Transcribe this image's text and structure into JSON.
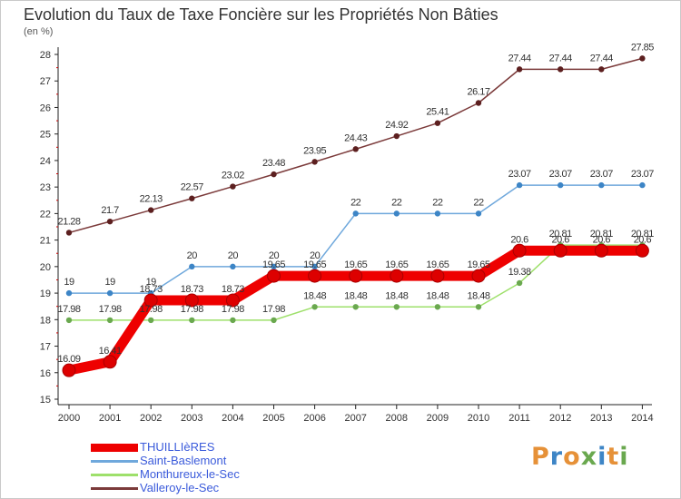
{
  "title": "Evolution du Taux de Taxe Foncière sur les Propriétés Non Bâties",
  "unit": "(en %)",
  "chart_data": {
    "type": "line",
    "title": "Evolution du Taux de Taxe Foncière sur les Propriétés Non Bâties",
    "ylabel": "(en %)",
    "xlabel": "",
    "ylim": [
      15,
      28
    ],
    "yticks": [
      15,
      16,
      17,
      18,
      19,
      20,
      21,
      22,
      23,
      24,
      25,
      26,
      27,
      28
    ],
    "grid": false,
    "categories": [
      "2000",
      "2001",
      "2002",
      "2003",
      "2004",
      "2005",
      "2006",
      "2007",
      "2008",
      "2009",
      "2010",
      "2011",
      "2012",
      "2013",
      "2014"
    ],
    "series": [
      {
        "name": "THUILLIèRES",
        "color": "#ee0000",
        "marker_color": "#dd0000",
        "values": [
          16.09,
          16.41,
          18.73,
          18.73,
          18.73,
          19.65,
          19.65,
          19.65,
          19.65,
          19.65,
          19.65,
          20.6,
          20.6,
          20.6,
          20.6
        ],
        "labels": [
          "16.09",
          "16.41",
          "18.73",
          "18.73",
          "18.73",
          "19.65",
          "19.65",
          "19.65",
          "19.65",
          "19.65",
          "19.65",
          "20.6",
          "20.6",
          "20.6",
          "20.6"
        ]
      },
      {
        "name": "Saint-Baslemont",
        "color": "#6fa8dc",
        "marker_color": "#3d85c6",
        "values": [
          19,
          19,
          19,
          20,
          20,
          20,
          20,
          22,
          22,
          22,
          22,
          23.07,
          23.07,
          23.07,
          23.07
        ],
        "labels": [
          "19",
          "19",
          "19",
          "20",
          "20",
          "20",
          "20",
          "22",
          "22",
          "22",
          "22",
          "23.07",
          "23.07",
          "23.07",
          "23.07"
        ]
      },
      {
        "name": "Monthureux-le-Sec",
        "color": "#9ee06b",
        "marker_color": "#6aa84f",
        "values": [
          17.98,
          17.98,
          17.98,
          17.98,
          17.98,
          17.98,
          18.48,
          18.48,
          18.48,
          18.48,
          18.48,
          19.38,
          20.81,
          20.81,
          20.81
        ],
        "labels": [
          "17.98",
          "17.98",
          "17.98",
          "17.98",
          "17.98",
          "17.98",
          "18.48",
          "18.48",
          "18.48",
          "18.48",
          "18.48",
          "19.38",
          "20.81",
          "20.81",
          "20.81"
        ]
      },
      {
        "name": "Valleroy-le-Sec",
        "color": "#7b3a3a",
        "marker_color": "#5c1f1f",
        "values": [
          21.28,
          21.7,
          22.13,
          22.57,
          23.02,
          23.48,
          23.95,
          24.43,
          24.92,
          25.41,
          26.17,
          27.44,
          27.44,
          27.44,
          27.85
        ],
        "labels": [
          "21.28",
          "21.7",
          "22.13",
          "22.57",
          "23.02",
          "23.48",
          "23.95",
          "24.43",
          "24.92",
          "25.41",
          "26.17",
          "27.44",
          "27.44",
          "27.44",
          "27.85"
        ]
      }
    ]
  },
  "logo": {
    "letters": [
      "P",
      "r",
      "o",
      "x",
      "i",
      "t",
      "i"
    ],
    "colors": [
      "#e69138",
      "#3d85c6",
      "#e69138",
      "#6aa84f",
      "#3d85c6",
      "#e69138",
      "#6aa84f"
    ]
  }
}
